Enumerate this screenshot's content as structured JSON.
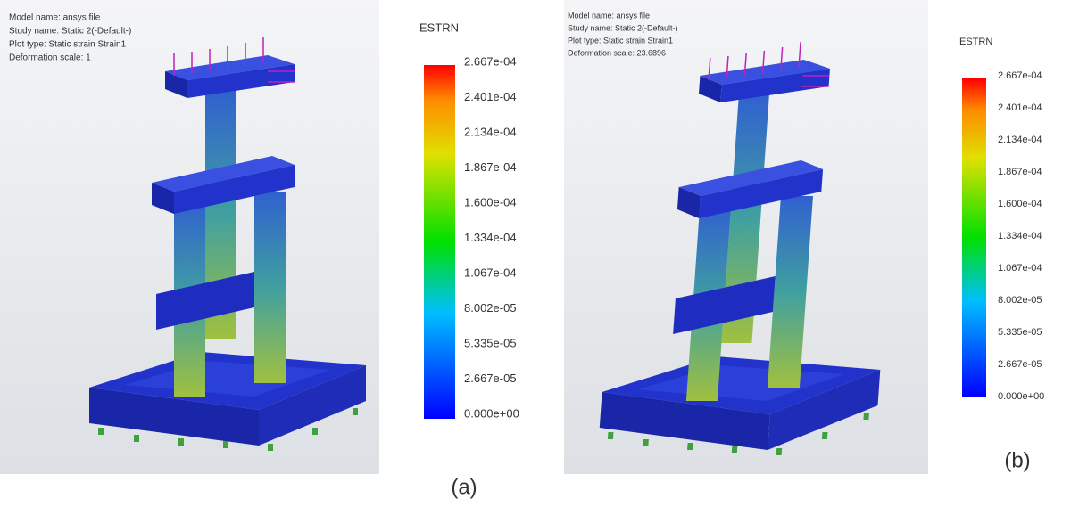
{
  "panels": [
    {
      "header": [
        "Model name: ansys file",
        "Study name: Static 2(-Default-)",
        "Plot type: Static strain Strain1",
        "Deformation scale: 1"
      ],
      "legend": {
        "title": "ESTRN",
        "labels": [
          "2.667e-04",
          "2.401e-04",
          "2.134e-04",
          "1.867e-04",
          "1.600e-04",
          "1.334e-04",
          "1.067e-04",
          "8.002e-05",
          "5.335e-05",
          "2.667e-05",
          "0.000e+00"
        ]
      },
      "caption": "(a)"
    },
    {
      "header": [
        "Model name: ansys file",
        "Study name: Static 2(-Default-)",
        "Plot type: Static strain Strain1",
        "Deformation scale: 23.6896"
      ],
      "legend": {
        "title": "ESTRN",
        "labels": [
          "2.667e-04",
          "2.401e-04",
          "2.134e-04",
          "1.867e-04",
          "1.600e-04",
          "1.334e-04",
          "1.067e-04",
          "8.002e-05",
          "5.335e-05",
          "2.667e-05",
          "0.000e+00"
        ]
      },
      "caption": "(b)"
    }
  ]
}
